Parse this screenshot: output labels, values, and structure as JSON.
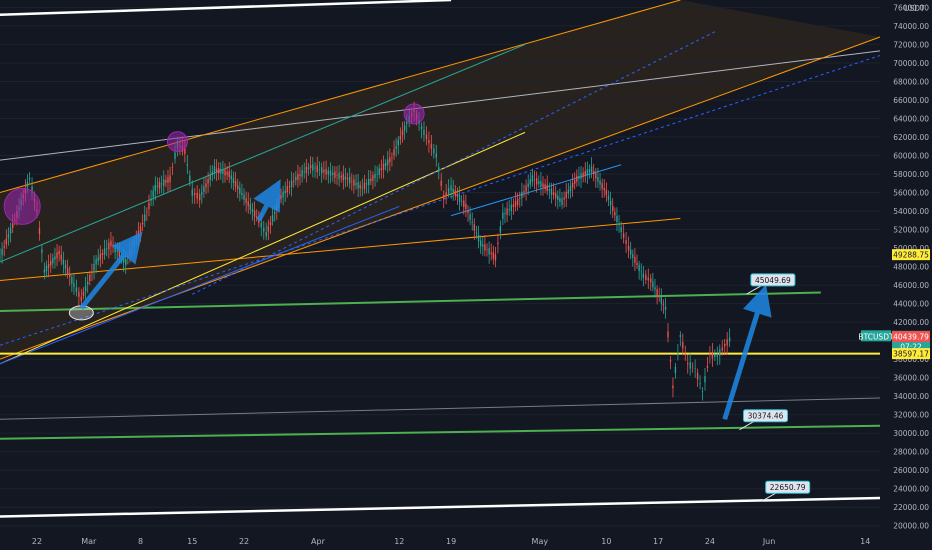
{
  "chart_data": {
    "type": "line",
    "instrument": "BTCUSDT",
    "y_unit_label": "USDT",
    "y_range": [
      19000,
      76800
    ],
    "y_ticks": [
      20000,
      22000,
      24000,
      26000,
      28000,
      30000,
      32000,
      34000,
      36000,
      38000,
      40000,
      42000,
      44000,
      46000,
      48000,
      50000,
      52000,
      54000,
      56000,
      58000,
      60000,
      62000,
      64000,
      66000,
      68000,
      70000,
      72000,
      74000,
      76000
    ],
    "y_tick_labels": [
      "20000.00",
      "22000.00",
      "24000.00",
      "26000.00",
      "28000.00",
      "30000.00",
      "32000.00",
      "34000.00",
      "36000.00",
      "38000.00",
      "40000.00",
      "42000.00",
      "44000.00",
      "46000.00",
      "48000.00",
      "50000.00",
      "52000.00",
      "54000.00",
      "56000.00",
      "58000.00",
      "60000.00",
      "62000.00",
      "64000.00",
      "66000.00",
      "68000.00",
      "70000.00",
      "72000.00",
      "74000.00",
      "76000.00"
    ],
    "x_range": [
      "2021-02-17",
      "2021-06-16"
    ],
    "x_ticks": [
      {
        "date": "2021-02-22",
        "label": "22"
      },
      {
        "date": "2021-03-01",
        "label": "Mar"
      },
      {
        "date": "2021-03-08",
        "label": "8"
      },
      {
        "date": "2021-03-15",
        "label": "15"
      },
      {
        "date": "2021-03-22",
        "label": "22"
      },
      {
        "date": "2021-04-01",
        "label": "Apr"
      },
      {
        "date": "2021-04-12",
        "label": "12"
      },
      {
        "date": "2021-04-19",
        "label": "19"
      },
      {
        "date": "2021-05-01",
        "label": "May"
      },
      {
        "date": "2021-05-10",
        "label": "10"
      },
      {
        "date": "2021-05-17",
        "label": "17"
      },
      {
        "date": "2021-05-24",
        "label": "24"
      },
      {
        "date": "2021-06-01",
        "label": "Jun"
      },
      {
        "date": "2021-06-14",
        "label": "14"
      }
    ],
    "price_path": [
      [
        "2021-02-17",
        49000
      ],
      [
        "2021-02-19",
        53000
      ],
      [
        "2021-02-21",
        57500
      ],
      [
        "2021-02-22",
        54000
      ],
      [
        "2021-02-23",
        47500
      ],
      [
        "2021-02-25",
        49500
      ],
      [
        "2021-02-27",
        46000
      ],
      [
        "2021-02-28",
        44500
      ],
      [
        "2021-03-02",
        48500
      ],
      [
        "2021-03-04",
        50500
      ],
      [
        "2021-03-06",
        48500
      ],
      [
        "2021-03-08",
        52000
      ],
      [
        "2021-03-10",
        56500
      ],
      [
        "2021-03-12",
        57500
      ],
      [
        "2021-03-13",
        61200
      ],
      [
        "2021-03-14",
        60500
      ],
      [
        "2021-03-15",
        56000
      ],
      [
        "2021-03-16",
        55500
      ],
      [
        "2021-03-18",
        58500
      ],
      [
        "2021-03-20",
        58000
      ],
      [
        "2021-03-22",
        55500
      ],
      [
        "2021-03-24",
        53000
      ],
      [
        "2021-03-25",
        51500
      ],
      [
        "2021-03-27",
        55500
      ],
      [
        "2021-03-29",
        57500
      ],
      [
        "2021-03-31",
        58800
      ],
      [
        "2021-04-03",
        58000
      ],
      [
        "2021-04-05",
        57500
      ],
      [
        "2021-04-07",
        56500
      ],
      [
        "2021-04-09",
        58000
      ],
      [
        "2021-04-11",
        59800
      ],
      [
        "2021-04-13",
        63500
      ],
      [
        "2021-04-14",
        64800
      ],
      [
        "2021-04-15",
        63000
      ],
      [
        "2021-04-16",
        61500
      ],
      [
        "2021-04-17",
        60000
      ],
      [
        "2021-04-18",
        55500
      ],
      [
        "2021-04-19",
        56500
      ],
      [
        "2021-04-21",
        54500
      ],
      [
        "2021-04-23",
        50500
      ],
      [
        "2021-04-25",
        49000
      ],
      [
        "2021-04-26",
        53500
      ],
      [
        "2021-04-28",
        55000
      ],
      [
        "2021-04-30",
        57500
      ],
      [
        "2021-05-02",
        56500
      ],
      [
        "2021-05-04",
        55000
      ],
      [
        "2021-05-06",
        57500
      ],
      [
        "2021-05-08",
        58500
      ],
      [
        "2021-05-10",
        56000
      ],
      [
        "2021-05-12",
        52000
      ],
      [
        "2021-05-13",
        50000
      ],
      [
        "2021-05-15",
        47000
      ],
      [
        "2021-05-16",
        46500
      ],
      [
        "2021-05-18",
        43500
      ],
      [
        "2021-05-19",
        35000
      ],
      [
        "2021-05-20",
        40500
      ],
      [
        "2021-05-21",
        37500
      ],
      [
        "2021-05-22",
        37000
      ],
      [
        "2021-05-23",
        34500
      ],
      [
        "2021-05-24",
        38500
      ],
      [
        "2021-05-25",
        38300
      ],
      [
        "2021-05-26",
        39500
      ],
      [
        "2021-05-27",
        40439.79
      ]
    ],
    "horizontal_lines": [
      {
        "name": "yellow-support",
        "price": 38597.17,
        "color": "#ffeb3b"
      }
    ],
    "trend_lines": [
      {
        "kind": "white-top",
        "color": "#ffffff",
        "points": [
          [
            "2021-02-17",
            75200
          ],
          [
            "2021-04-19",
            76800
          ]
        ]
      },
      {
        "kind": "grey-upper",
        "color": "#b2b5be",
        "points": [
          [
            "2021-02-17",
            59500
          ],
          [
            "2021-06-16",
            71300
          ]
        ]
      },
      {
        "kind": "green-45049",
        "color": "#4caf50",
        "points": [
          [
            "2021-02-17",
            43200
          ],
          [
            "2021-06-08",
            45200
          ]
        ]
      },
      {
        "kind": "green-30374",
        "color": "#4caf50",
        "points": [
          [
            "2021-02-17",
            29400
          ],
          [
            "2021-06-16",
            30800
          ]
        ]
      },
      {
        "kind": "grey-lower",
        "color": "#787b86",
        "points": [
          [
            "2021-02-17",
            31500
          ],
          [
            "2021-06-16",
            33800
          ]
        ]
      },
      {
        "kind": "white-bottom",
        "color": "#ffffff",
        "points": [
          [
            "2021-02-17",
            21000
          ],
          [
            "2021-06-16",
            23000
          ]
        ]
      },
      {
        "kind": "orange-mid",
        "color": "#ff9800",
        "points": [
          [
            "2021-02-17",
            46500
          ],
          [
            "2021-05-20",
            53200
          ]
        ]
      },
      {
        "kind": "channel-upper",
        "color": "#ff9800",
        "points": [
          [
            "2021-02-17",
            56000
          ],
          [
            "2021-05-20",
            76800
          ]
        ]
      },
      {
        "kind": "channel-lower",
        "color": "#ff9800",
        "points": [
          [
            "2021-02-17",
            38000
          ],
          [
            "2021-06-16",
            72800
          ]
        ]
      },
      {
        "kind": "channel-teal",
        "color": "#26a69a",
        "points": [
          [
            "2021-02-17",
            48500
          ],
          [
            "2021-04-29",
            72000
          ]
        ]
      },
      {
        "kind": "channel-yellow",
        "color": "#ffeb3b",
        "points": [
          [
            "2021-02-17",
            37500
          ],
          [
            "2021-04-29",
            62500
          ]
        ]
      },
      {
        "kind": "channel-blue-dash",
        "color": "#2962ff",
        "points": [
          [
            "2021-02-17",
            39500
          ],
          [
            "2021-06-16",
            70800
          ]
        ]
      },
      {
        "kind": "channel-blue-dash2",
        "color": "#2962ff",
        "points": [
          [
            "2021-03-15",
            45000
          ],
          [
            "2021-05-25",
            73500
          ]
        ]
      },
      {
        "kind": "channel-blue-low",
        "color": "#2962ff",
        "points": [
          [
            "2021-02-17",
            37500
          ],
          [
            "2021-04-12",
            54500
          ]
        ]
      },
      {
        "kind": "blue-short",
        "color": "#2196f3",
        "points": [
          [
            "2021-04-19",
            53500
          ],
          [
            "2021-05-12",
            59000
          ]
        ]
      }
    ],
    "callouts": [
      {
        "price_label": "45049.69",
        "anchor": [
          "2021-05-29",
          45049.69
        ]
      },
      {
        "price_label": "30374.46",
        "anchor": [
          "2021-05-28",
          30374.46
        ]
      },
      {
        "price_label": "22650.79",
        "anchor": [
          "2021-05-31",
          22650.79
        ]
      }
    ],
    "arrows": [
      {
        "from": [
          "2021-02-28",
          43500
        ],
        "to": [
          "2021-03-07",
          50500
        ]
      },
      {
        "from": [
          "2021-03-24",
          53000
        ],
        "to": [
          "2021-03-26",
          56000
        ]
      },
      {
        "from": [
          "2021-05-26",
          31500
        ],
        "to": [
          "2021-05-31",
          44500
        ]
      }
    ],
    "highlight_circles": [
      {
        "at": [
          "2021-02-20",
          54500
        ],
        "color": "#9c27b0"
      },
      {
        "at": [
          "2021-03-13",
          61500
        ],
        "color": "#9c27b0"
      },
      {
        "at": [
          "2021-04-14",
          64500
        ],
        "color": "#9c27b0"
      },
      {
        "at": [
          "2021-02-28",
          43000
        ],
        "color": "#e0e3eb"
      }
    ],
    "price_tags": [
      {
        "label": "49288.75",
        "price": 49288.75,
        "bg": "#ffeb3b",
        "fg": "#131722"
      },
      {
        "label": "40463.84",
        "price": 40463.84,
        "bg": "#26a69a",
        "fg": "#ffffff"
      },
      {
        "label": "07:22",
        "price": 39350,
        "bg": "#26a69a",
        "fg": "#ffffff"
      },
      {
        "label": "40439.79",
        "price": 40439.79,
        "bg": "#ef5350",
        "fg": "#ffffff"
      },
      {
        "label": "38597.17",
        "price": 38597.17,
        "bg": "#ffeb3b",
        "fg": "#131722"
      }
    ],
    "symbol_tag": {
      "label": "BTCUSDT",
      "bg": "#26a69a",
      "fg": "#ffffff",
      "price": 40463.84
    }
  }
}
